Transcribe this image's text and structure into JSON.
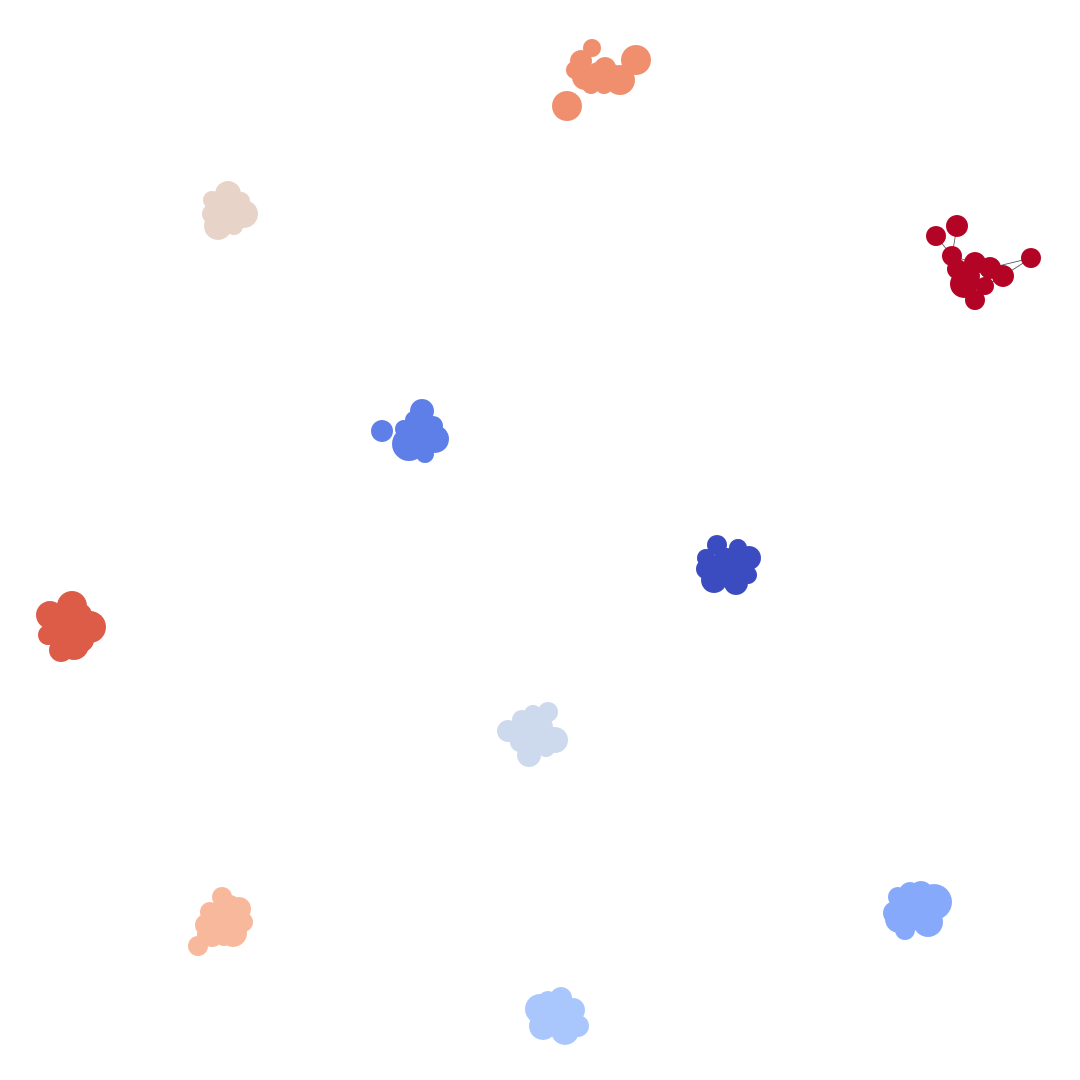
{
  "graph": {
    "background": "#ffffff",
    "edge_color": "#555555",
    "clusters": [
      {
        "id": "cluster-1",
        "color": "#f08f6e",
        "node_count": 12,
        "visible_edges": false
      },
      {
        "id": "cluster-2",
        "color": "#e8d3c8",
        "node_count": 10,
        "visible_edges": false
      },
      {
        "id": "cluster-3",
        "color": "#b40426",
        "node_count": 12,
        "visible_edges": true
      },
      {
        "id": "cluster-4",
        "color": "#5f7fe8",
        "node_count": 10,
        "visible_edges": false
      },
      {
        "id": "cluster-5",
        "color": "#3b4cc0",
        "node_count": 12,
        "visible_edges": false
      },
      {
        "id": "cluster-6",
        "color": "#dc5c47",
        "node_count": 10,
        "visible_edges": false
      },
      {
        "id": "cluster-7",
        "color": "#cdd9ec",
        "node_count": 12,
        "visible_edges": false
      },
      {
        "id": "cluster-8",
        "color": "#f7b89c",
        "node_count": 13,
        "visible_edges": false
      },
      {
        "id": "cluster-9",
        "color": "#86a9fc",
        "node_count": 11,
        "visible_edges": false
      },
      {
        "id": "cluster-10",
        "color": "#aac7fd",
        "node_count": 10,
        "visible_edges": false
      }
    ]
  }
}
